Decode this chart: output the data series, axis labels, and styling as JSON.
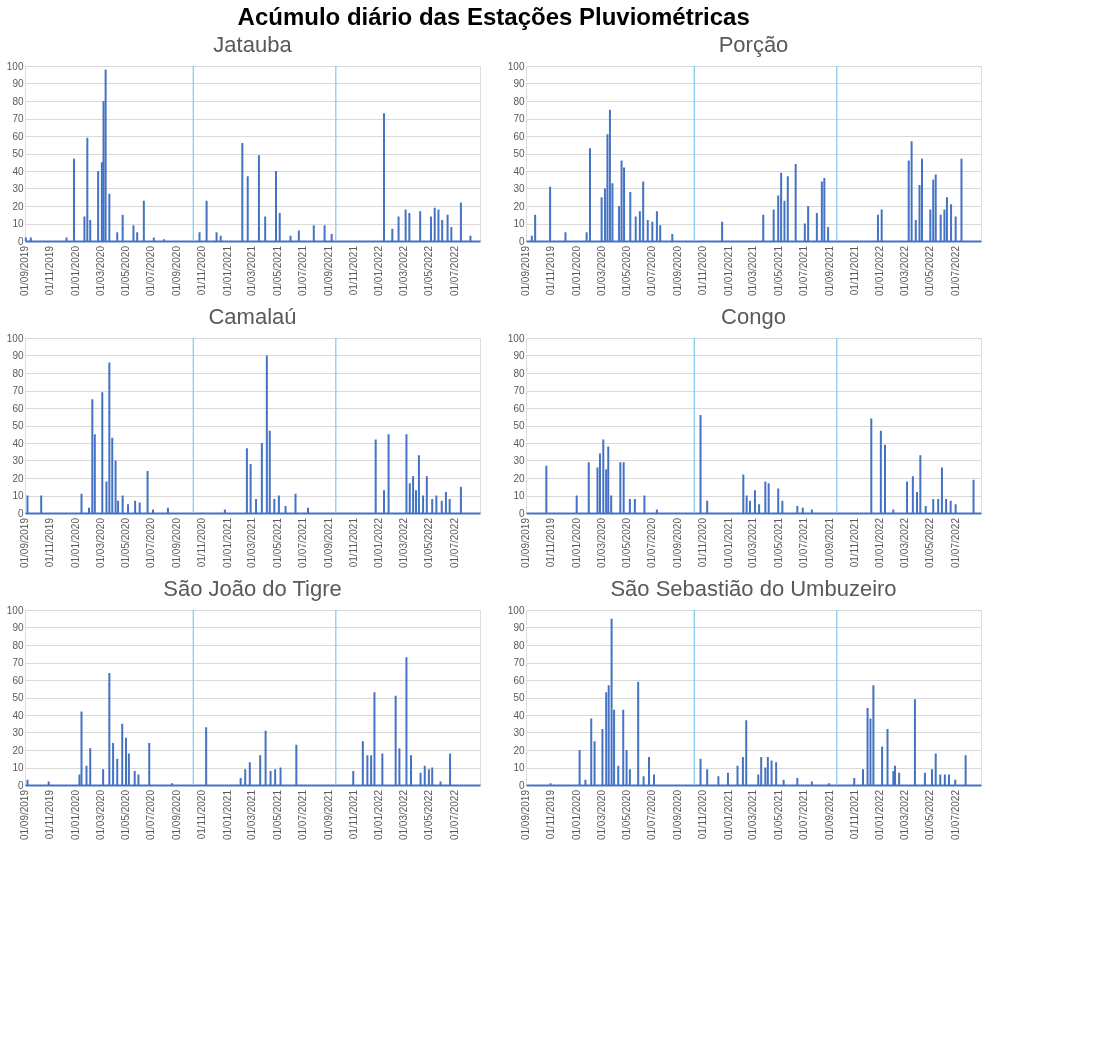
{
  "chart_data": [
    {
      "type": "other",
      "title": "Acúmulo diário das Estações Pluviométricas"
    },
    {
      "type": "bar",
      "title": "Jatauba",
      "color": "#4472c4",
      "grid": "y",
      "xlim": [
        "2019-09-01",
        "2022-08-31"
      ],
      "ylim": [
        0,
        100
      ],
      "yticks": [
        0,
        10,
        20,
        30,
        40,
        50,
        60,
        70,
        80,
        90,
        100
      ],
      "xticks": [
        {
          "value": "2019-09-01",
          "label": "01/09/2019"
        },
        {
          "value": "2019-11-01",
          "label": "01/11/2019"
        },
        {
          "value": "2020-01-01",
          "label": "01/01/2020"
        },
        {
          "value": "2020-03-01",
          "label": "01/03/2020"
        },
        {
          "value": "2020-05-01",
          "label": "01/05/2020"
        },
        {
          "value": "2020-07-01",
          "label": "01/07/2020"
        },
        {
          "value": "2020-09-01",
          "label": "01/09/2020"
        },
        {
          "value": "2020-11-01",
          "label": "01/11/2020"
        },
        {
          "value": "2021-01-01",
          "label": "01/01/2021"
        },
        {
          "value": "2021-03-01",
          "label": "01/03/2021"
        },
        {
          "value": "2021-05-01",
          "label": "01/05/2021"
        },
        {
          "value": "2021-07-01",
          "label": "01/07/2021"
        },
        {
          "value": "2021-09-01",
          "label": "01/09/2021"
        },
        {
          "value": "2021-11-01",
          "label": "01/11/2021"
        },
        {
          "value": "2022-01-01",
          "label": "01/01/2022"
        },
        {
          "value": "2022-03-01",
          "label": "01/03/2022"
        },
        {
          "value": "2022-05-01",
          "label": "01/05/2022"
        },
        {
          "value": "2022-07-01",
          "label": "01/07/2022"
        }
      ],
      "ref_lines": [
        {
          "axis": "x",
          "value": "2020-10-10",
          "color": "#7ec8f0"
        },
        {
          "axis": "x",
          "value": "2021-09-18",
          "color": "#7ec8f0"
        }
      ],
      "x": [
        "2019-09-03",
        "2019-09-15",
        "2019-12-10",
        "2019-12-28",
        "2020-01-22",
        "2020-01-29",
        "2020-02-05",
        "2020-02-24",
        "2020-03-04",
        "2020-03-08",
        "2020-03-13",
        "2020-03-22",
        "2020-04-10",
        "2020-04-23",
        "2020-05-19",
        "2020-05-28",
        "2020-06-13",
        "2020-07-07",
        "2020-08-01",
        "2020-10-25",
        "2020-11-11",
        "2020-12-05",
        "2020-12-15",
        "2021-02-05",
        "2021-02-18",
        "2021-03-17",
        "2021-04-01",
        "2021-04-27",
        "2021-05-06",
        "2021-06-01",
        "2021-06-21",
        "2021-07-27",
        "2021-08-22",
        "2021-09-08",
        "2022-01-12",
        "2022-02-01",
        "2022-02-16",
        "2022-03-05",
        "2022-03-14",
        "2022-04-09",
        "2022-05-05",
        "2022-05-14",
        "2022-05-23",
        "2022-06-01",
        "2022-06-14",
        "2022-06-23",
        "2022-07-16",
        "2022-08-08"
      ],
      "values": [
        2,
        2,
        2,
        47,
        14,
        59,
        12,
        40,
        45,
        80,
        98,
        27,
        5,
        15,
        9,
        5,
        23,
        2,
        1,
        5,
        23,
        5,
        3,
        56,
        37,
        49,
        14,
        40,
        16,
        3,
        6,
        9,
        9,
        4,
        73,
        7,
        14,
        18,
        16,
        17,
        14,
        19,
        18,
        12,
        15,
        8,
        22,
        3
      ]
    },
    {
      "type": "bar",
      "title": "Porção",
      "color": "#4472c4",
      "grid": "y",
      "xlim": [
        "2019-09-01",
        "2022-08-31"
      ],
      "ylim": [
        0,
        100
      ],
      "yticks": [
        0,
        10,
        20,
        30,
        40,
        50,
        60,
        70,
        80,
        90,
        100
      ],
      "xticks": [
        {
          "value": "2019-09-01",
          "label": "01/09/2019"
        },
        {
          "value": "2019-11-01",
          "label": "01/11/2019"
        },
        {
          "value": "2020-01-01",
          "label": "01/01/2020"
        },
        {
          "value": "2020-03-01",
          "label": "01/03/2020"
        },
        {
          "value": "2020-05-01",
          "label": "01/05/2020"
        },
        {
          "value": "2020-07-01",
          "label": "01/07/2020"
        },
        {
          "value": "2020-09-01",
          "label": "01/09/2020"
        },
        {
          "value": "2020-11-01",
          "label": "01/11/2020"
        },
        {
          "value": "2021-01-01",
          "label": "01/01/2021"
        },
        {
          "value": "2021-03-01",
          "label": "01/03/2021"
        },
        {
          "value": "2021-05-01",
          "label": "01/05/2021"
        },
        {
          "value": "2021-07-01",
          "label": "01/07/2021"
        },
        {
          "value": "2021-09-01",
          "label": "01/09/2021"
        },
        {
          "value": "2021-11-01",
          "label": "01/11/2021"
        },
        {
          "value": "2022-01-01",
          "label": "01/01/2022"
        },
        {
          "value": "2022-03-01",
          "label": "01/03/2022"
        },
        {
          "value": "2022-05-01",
          "label": "01/05/2022"
        },
        {
          "value": "2022-07-01",
          "label": "01/07/2022"
        }
      ],
      "ref_lines": [
        {
          "axis": "x",
          "value": "2020-10-10",
          "color": "#7ec8f0"
        },
        {
          "axis": "x",
          "value": "2021-09-18",
          "color": "#7ec8f0"
        }
      ],
      "x": [
        "2019-09-15",
        "2019-09-23",
        "2019-10-29",
        "2019-12-05",
        "2020-01-25",
        "2020-02-02",
        "2020-03-01",
        "2020-03-09",
        "2020-03-15",
        "2020-03-21",
        "2020-03-27",
        "2020-04-12",
        "2020-04-18",
        "2020-04-24",
        "2020-05-09",
        "2020-05-22",
        "2020-06-01",
        "2020-06-09",
        "2020-06-20",
        "2020-07-01",
        "2020-07-12",
        "2020-07-20",
        "2020-08-18",
        "2020-12-16",
        "2021-03-25",
        "2021-04-19",
        "2021-04-30",
        "2021-05-07",
        "2021-05-15",
        "2021-05-23",
        "2021-06-11",
        "2021-07-03",
        "2021-07-11",
        "2021-08-01",
        "2021-08-13",
        "2021-08-19",
        "2021-08-28",
        "2021-12-26",
        "2022-01-04",
        "2022-03-10",
        "2022-03-17",
        "2022-03-27",
        "2022-04-05",
        "2022-04-11",
        "2022-05-01",
        "2022-05-08",
        "2022-05-14",
        "2022-05-26",
        "2022-06-04",
        "2022-06-10",
        "2022-06-20",
        "2022-07-01",
        "2022-07-15"
      ],
      "values": [
        3,
        15,
        31,
        5,
        5,
        53,
        25,
        30,
        61,
        75,
        33,
        20,
        46,
        42,
        28,
        14,
        17,
        34,
        12,
        11,
        17,
        9,
        4,
        11,
        15,
        18,
        26,
        39,
        23,
        37,
        44,
        10,
        20,
        16,
        34,
        36,
        8,
        15,
        18,
        46,
        57,
        12,
        32,
        47,
        18,
        35,
        38,
        15,
        18,
        25,
        21,
        14,
        47
      ]
    },
    {
      "type": "bar",
      "title": "Camalaú",
      "color": "#4472c4",
      "grid": "y",
      "xlim": [
        "2019-09-01",
        "2022-08-31"
      ],
      "ylim": [
        0,
        100
      ],
      "yticks": [
        0,
        10,
        20,
        30,
        40,
        50,
        60,
        70,
        80,
        90,
        100
      ],
      "xticks": [
        {
          "value": "2019-09-01",
          "label": "01/09/2019"
        },
        {
          "value": "2019-11-01",
          "label": "01/11/2019"
        },
        {
          "value": "2020-01-01",
          "label": "01/01/2020"
        },
        {
          "value": "2020-03-01",
          "label": "01/03/2020"
        },
        {
          "value": "2020-05-01",
          "label": "01/05/2020"
        },
        {
          "value": "2020-07-01",
          "label": "01/07/2020"
        },
        {
          "value": "2020-09-01",
          "label": "01/09/2020"
        },
        {
          "value": "2020-11-01",
          "label": "01/11/2020"
        },
        {
          "value": "2021-01-01",
          "label": "01/01/2021"
        },
        {
          "value": "2021-03-01",
          "label": "01/03/2021"
        },
        {
          "value": "2021-05-01",
          "label": "01/05/2021"
        },
        {
          "value": "2021-07-01",
          "label": "01/07/2021"
        },
        {
          "value": "2021-09-01",
          "label": "01/09/2021"
        },
        {
          "value": "2021-11-01",
          "label": "01/11/2021"
        },
        {
          "value": "2022-01-01",
          "label": "01/01/2022"
        },
        {
          "value": "2022-03-01",
          "label": "01/03/2022"
        },
        {
          "value": "2022-05-01",
          "label": "01/05/2022"
        },
        {
          "value": "2022-07-01",
          "label": "01/07/2022"
        }
      ],
      "ref_lines": [
        {
          "axis": "x",
          "value": "2020-10-10",
          "color": "#7ec8f0"
        },
        {
          "axis": "x",
          "value": "2021-09-18",
          "color": "#7ec8f0"
        }
      ],
      "x": [
        "2019-09-07",
        "2019-10-10",
        "2020-01-15",
        "2020-02-02",
        "2020-02-10",
        "2020-02-16",
        "2020-03-05",
        "2020-03-15",
        "2020-03-22",
        "2020-03-29",
        "2020-04-06",
        "2020-04-12",
        "2020-04-23",
        "2020-05-06",
        "2020-05-23",
        "2020-06-03",
        "2020-06-22",
        "2020-07-05",
        "2020-08-10",
        "2020-12-25",
        "2021-02-16",
        "2021-02-25",
        "2021-03-10",
        "2021-03-24",
        "2021-04-05",
        "2021-04-12",
        "2021-04-23",
        "2021-05-04",
        "2021-05-20",
        "2021-06-13",
        "2021-07-13",
        "2021-12-23",
        "2022-01-12",
        "2022-01-23",
        "2022-03-07",
        "2022-03-15",
        "2022-03-23",
        "2022-03-30",
        "2022-04-06",
        "2022-04-16",
        "2022-04-25",
        "2022-05-08",
        "2022-05-18",
        "2022-05-31",
        "2022-06-10",
        "2022-06-19",
        "2022-07-16"
      ],
      "values": [
        10,
        10,
        11,
        3,
        65,
        45,
        69,
        18,
        86,
        43,
        30,
        7,
        10,
        5,
        7,
        6,
        24,
        2,
        3,
        2,
        37,
        28,
        8,
        40,
        90,
        47,
        8,
        10,
        4,
        11,
        3,
        42,
        13,
        45,
        45,
        17,
        21,
        13,
        33,
        10,
        21,
        8,
        10,
        7,
        12,
        8,
        15
      ]
    },
    {
      "type": "bar",
      "title": "Congo",
      "color": "#4472c4",
      "grid": "y",
      "xlim": [
        "2019-09-01",
        "2022-08-31"
      ],
      "ylim": [
        0,
        100
      ],
      "yticks": [
        0,
        10,
        20,
        30,
        40,
        50,
        60,
        70,
        80,
        90,
        100
      ],
      "xticks": [
        {
          "value": "2019-09-01",
          "label": "01/09/2019"
        },
        {
          "value": "2019-11-01",
          "label": "01/11/2019"
        },
        {
          "value": "2020-01-01",
          "label": "01/01/2020"
        },
        {
          "value": "2020-03-01",
          "label": "01/03/2020"
        },
        {
          "value": "2020-05-01",
          "label": "01/05/2020"
        },
        {
          "value": "2020-07-01",
          "label": "01/07/2020"
        },
        {
          "value": "2020-09-01",
          "label": "01/09/2020"
        },
        {
          "value": "2020-11-01",
          "label": "01/11/2020"
        },
        {
          "value": "2021-01-01",
          "label": "01/01/2021"
        },
        {
          "value": "2021-03-01",
          "label": "01/03/2021"
        },
        {
          "value": "2021-05-01",
          "label": "01/05/2021"
        },
        {
          "value": "2021-07-01",
          "label": "01/07/2021"
        },
        {
          "value": "2021-09-01",
          "label": "01/09/2021"
        },
        {
          "value": "2021-11-01",
          "label": "01/11/2021"
        },
        {
          "value": "2022-01-01",
          "label": "01/01/2022"
        },
        {
          "value": "2022-03-01",
          "label": "01/03/2022"
        },
        {
          "value": "2022-05-01",
          "label": "01/05/2022"
        },
        {
          "value": "2022-07-01",
          "label": "01/07/2022"
        }
      ],
      "ref_lines": [
        {
          "axis": "x",
          "value": "2020-10-10",
          "color": "#7ec8f0"
        },
        {
          "axis": "x",
          "value": "2021-09-18",
          "color": "#7ec8f0"
        }
      ],
      "x": [
        "2019-10-20",
        "2020-01-01",
        "2020-01-30",
        "2020-02-20",
        "2020-02-26",
        "2020-03-05",
        "2020-03-12",
        "2020-03-17",
        "2020-03-24",
        "2020-04-15",
        "2020-04-23",
        "2020-05-08",
        "2020-05-20",
        "2020-06-12",
        "2020-07-12",
        "2020-10-25",
        "2020-11-10",
        "2021-02-05",
        "2021-02-13",
        "2021-02-21",
        "2021-03-05",
        "2021-03-15",
        "2021-03-30",
        "2021-04-07",
        "2021-04-30",
        "2021-05-10",
        "2021-06-15",
        "2021-06-28",
        "2021-07-20",
        "2021-12-10",
        "2022-01-02",
        "2022-01-12",
        "2022-02-01",
        "2022-03-06",
        "2022-03-20",
        "2022-03-30",
        "2022-04-07",
        "2022-04-20",
        "2022-05-08",
        "2022-05-20",
        "2022-05-29",
        "2022-06-08",
        "2022-06-19",
        "2022-07-01",
        "2022-08-13"
      ],
      "values": [
        27,
        10,
        29,
        26,
        34,
        42,
        25,
        38,
        10,
        29,
        29,
        8,
        8,
        10,
        2,
        56,
        7,
        22,
        10,
        7,
        13,
        5,
        18,
        17,
        14,
        7,
        4,
        3,
        2,
        54,
        47,
        39,
        2,
        18,
        21,
        12,
        33,
        4,
        8,
        8,
        26,
        8,
        7,
        5,
        19
      ]
    },
    {
      "type": "bar",
      "title": "São João do Tigre",
      "color": "#4472c4",
      "grid": "y",
      "xlim": [
        "2019-09-01",
        "2022-08-31"
      ],
      "ylim": [
        0,
        100
      ],
      "yticks": [
        0,
        10,
        20,
        30,
        40,
        50,
        60,
        70,
        80,
        90,
        100
      ],
      "xticks": [
        {
          "value": "2019-09-01",
          "label": "01/09/2019"
        },
        {
          "value": "2019-11-01",
          "label": "01/11/2019"
        },
        {
          "value": "2020-01-01",
          "label": "01/01/2020"
        },
        {
          "value": "2020-03-01",
          "label": "01/03/2020"
        },
        {
          "value": "2020-05-01",
          "label": "01/05/2020"
        },
        {
          "value": "2020-07-01",
          "label": "01/07/2020"
        },
        {
          "value": "2020-09-01",
          "label": "01/09/2020"
        },
        {
          "value": "2020-11-01",
          "label": "01/11/2020"
        },
        {
          "value": "2021-01-01",
          "label": "01/01/2021"
        },
        {
          "value": "2021-03-01",
          "label": "01/03/2021"
        },
        {
          "value": "2021-05-01",
          "label": "01/05/2021"
        },
        {
          "value": "2021-07-01",
          "label": "01/07/2021"
        },
        {
          "value": "2021-09-01",
          "label": "01/09/2021"
        },
        {
          "value": "2021-11-01",
          "label": "01/11/2021"
        },
        {
          "value": "2022-01-01",
          "label": "01/01/2022"
        },
        {
          "value": "2022-03-01",
          "label": "01/03/2022"
        },
        {
          "value": "2022-05-01",
          "label": "01/05/2022"
        },
        {
          "value": "2022-07-01",
          "label": "01/07/2022"
        }
      ],
      "ref_lines": [
        {
          "axis": "x",
          "value": "2020-10-10",
          "color": "#7ec8f0"
        },
        {
          "axis": "x",
          "value": "2021-09-18",
          "color": "#7ec8f0"
        }
      ],
      "x": [
        "2019-09-07",
        "2019-10-28",
        "2020-01-10",
        "2020-01-15",
        "2020-01-27",
        "2020-02-05",
        "2020-03-07",
        "2020-03-22",
        "2020-03-31",
        "2020-04-10",
        "2020-04-22",
        "2020-05-01",
        "2020-05-08",
        "2020-05-22",
        "2020-05-31",
        "2020-06-26",
        "2020-08-20",
        "2020-11-10",
        "2021-02-01",
        "2021-02-12",
        "2021-02-23",
        "2021-03-20",
        "2021-04-02",
        "2021-04-14",
        "2021-04-25",
        "2021-05-08",
        "2021-06-15",
        "2021-10-30",
        "2021-11-22",
        "2021-12-03",
        "2021-12-12",
        "2021-12-20",
        "2022-01-08",
        "2022-02-09",
        "2022-02-18",
        "2022-03-07",
        "2022-03-18",
        "2022-04-10",
        "2022-04-20",
        "2022-04-30",
        "2022-05-08",
        "2022-05-28",
        "2022-06-20"
      ],
      "values": [
        3,
        2,
        6,
        42,
        11,
        21,
        9,
        64,
        24,
        15,
        35,
        27,
        18,
        8,
        6,
        24,
        1,
        33,
        4,
        9,
        13,
        17,
        31,
        8,
        9,
        10,
        23,
        8,
        25,
        17,
        17,
        53,
        18,
        51,
        21,
        73,
        17,
        7,
        11,
        9,
        10,
        2,
        18
      ]
    },
    {
      "type": "bar",
      "title": "São Sebastião do Umbuzeiro",
      "color": "#4472c4",
      "grid": "y",
      "xlim": [
        "2019-09-01",
        "2022-08-31"
      ],
      "ylim": [
        0,
        100
      ],
      "yticks": [
        0,
        10,
        20,
        30,
        40,
        50,
        60,
        70,
        80,
        90,
        100
      ],
      "xticks": [
        {
          "value": "2019-09-01",
          "label": "01/09/2019"
        },
        {
          "value": "2019-11-01",
          "label": "01/11/2019"
        },
        {
          "value": "2020-01-01",
          "label": "01/01/2020"
        },
        {
          "value": "2020-03-01",
          "label": "01/03/2020"
        },
        {
          "value": "2020-05-01",
          "label": "01/05/2020"
        },
        {
          "value": "2020-07-01",
          "label": "01/07/2020"
        },
        {
          "value": "2020-09-01",
          "label": "01/09/2020"
        },
        {
          "value": "2020-11-01",
          "label": "01/11/2020"
        },
        {
          "value": "2021-01-01",
          "label": "01/01/2021"
        },
        {
          "value": "2021-03-01",
          "label": "01/03/2021"
        },
        {
          "value": "2021-05-01",
          "label": "01/05/2021"
        },
        {
          "value": "2021-07-01",
          "label": "01/07/2021"
        },
        {
          "value": "2021-09-01",
          "label": "01/09/2021"
        },
        {
          "value": "2021-11-01",
          "label": "01/11/2021"
        },
        {
          "value": "2022-01-01",
          "label": "01/01/2022"
        },
        {
          "value": "2022-03-01",
          "label": "01/03/2022"
        },
        {
          "value": "2022-05-01",
          "label": "01/05/2022"
        },
        {
          "value": "2022-07-01",
          "label": "01/07/2022"
        }
      ],
      "ref_lines": [
        {
          "axis": "x",
          "value": "2020-10-10",
          "color": "#7ec8f0"
        },
        {
          "axis": "x",
          "value": "2021-09-18",
          "color": "#7ec8f0"
        }
      ],
      "x": [
        "2019-10-30",
        "2020-01-08",
        "2020-01-22",
        "2020-02-05",
        "2020-02-13",
        "2020-03-03",
        "2020-03-12",
        "2020-03-18",
        "2020-03-25",
        "2020-03-31",
        "2020-04-10",
        "2020-04-22",
        "2020-04-30",
        "2020-05-08",
        "2020-05-28",
        "2020-06-10",
        "2020-06-23",
        "2020-07-05",
        "2020-10-25",
        "2020-11-10",
        "2020-12-07",
        "2020-12-30",
        "2021-01-22",
        "2021-02-04",
        "2021-02-12",
        "2021-03-13",
        "2021-03-20",
        "2021-03-30",
        "2021-04-05",
        "2021-04-14",
        "2021-04-25",
        "2021-05-13",
        "2021-06-15",
        "2021-07-20",
        "2021-08-30",
        "2021-10-30",
        "2021-11-20",
        "2021-12-01",
        "2021-12-08",
        "2021-12-15",
        "2022-01-05",
        "2022-01-18",
        "2022-02-01",
        "2022-02-05",
        "2022-02-15",
        "2022-03-25",
        "2022-04-18",
        "2022-05-05",
        "2022-05-14",
        "2022-05-25",
        "2022-06-05",
        "2022-06-15",
        "2022-06-30",
        "2022-07-25"
      ],
      "values": [
        1,
        20,
        3,
        38,
        25,
        32,
        53,
        57,
        95,
        43,
        11,
        43,
        20,
        9,
        59,
        5,
        16,
        6,
        15,
        9,
        5,
        7,
        11,
        16,
        37,
        6,
        16,
        10,
        16,
        14,
        13,
        3,
        4,
        2,
        1,
        4,
        9,
        44,
        38,
        57,
        22,
        32,
        8,
        11,
        7,
        49,
        7,
        9,
        18,
        6,
        6,
        6,
        3,
        17
      ]
    }
  ]
}
